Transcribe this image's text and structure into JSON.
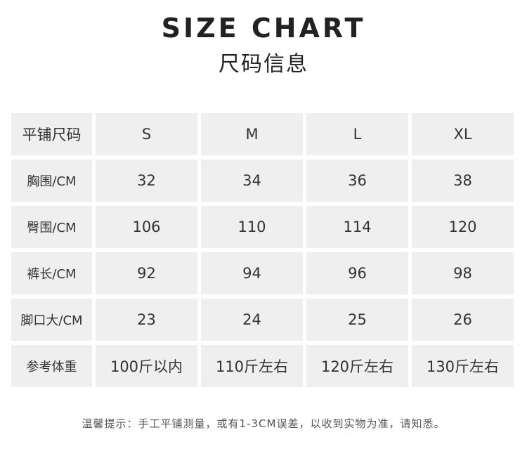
{
  "title": "SIZE CHART",
  "subtitle": "尺码信息",
  "table": {
    "header": [
      "平铺尺码",
      "S",
      "M",
      "L",
      "XL"
    ],
    "rows": [
      [
        "胸围/CM",
        "32",
        "34",
        "36",
        "38"
      ],
      [
        "臀围/CM",
        "106",
        "110",
        "114",
        "120"
      ],
      [
        "裤长/CM",
        "92",
        "94",
        "96",
        "98"
      ],
      [
        "脚口大/CM",
        "23",
        "24",
        "25",
        "26"
      ],
      [
        "参考体重",
        "100斤以内",
        "110斤左右",
        "120斤左右",
        "130斤左右"
      ]
    ]
  },
  "note": "温馨提示：手工平铺测量，或有1-3CM误差，以收到实物为准，请知悉。"
}
